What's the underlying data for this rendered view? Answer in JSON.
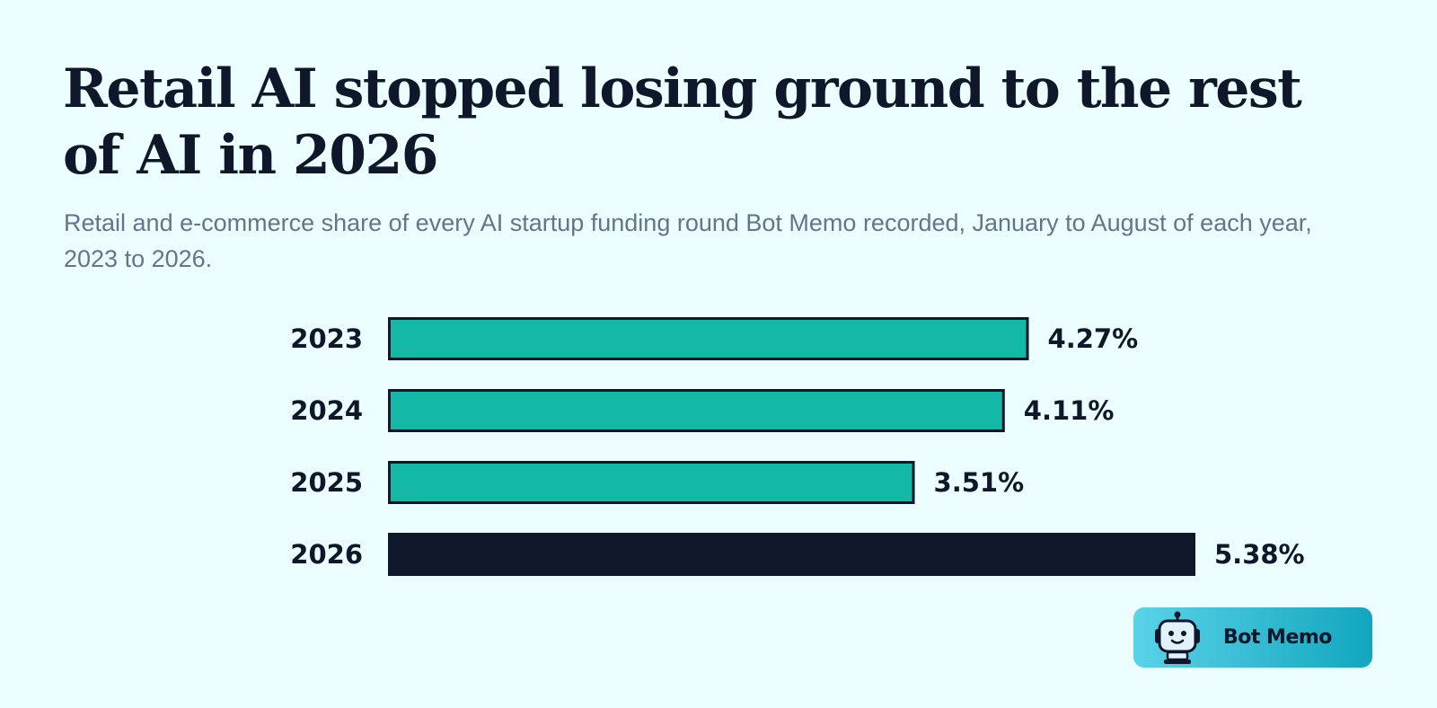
{
  "header": {
    "title": "Retail AI stopped losing ground to the rest of AI in 2026",
    "subtitle": "Retail and e-commerce share of every AI startup funding round Bot Memo recorded, January to August of each year, 2023 to 2026."
  },
  "brand": {
    "name": "Bot Memo",
    "icon": "robot-icon"
  },
  "colors": {
    "background": "#ecfeff",
    "bar_default": "#14b8a6",
    "bar_highlight": "#0f172a",
    "bar_outline": "#0f172a",
    "text": "#0f172a",
    "subtitle": "#64748b"
  },
  "chart_data": {
    "type": "bar",
    "orientation": "horizontal",
    "categories": [
      "2023",
      "2024",
      "2025",
      "2026"
    ],
    "values": [
      4.27,
      4.11,
      3.51,
      5.38
    ],
    "value_labels": [
      "4.27%",
      "4.11%",
      "3.51%",
      "5.38%"
    ],
    "highlight": "2026",
    "unit": "%",
    "xlim": [
      0,
      5.38
    ],
    "grid": false,
    "legend": "none"
  }
}
